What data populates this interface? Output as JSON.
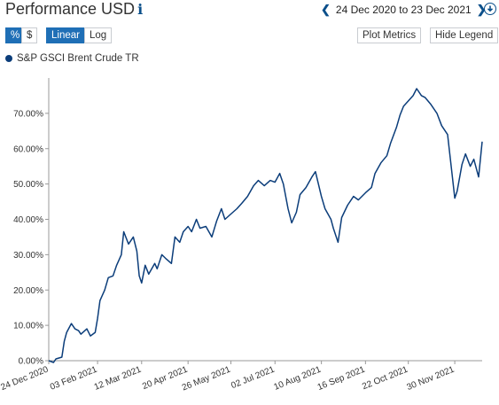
{
  "header": {
    "title": "Performance USD",
    "info_icon": "i",
    "date_range": "24 Dec 2020 to 23 Dec 2021",
    "prev_icon": "chevron-left-icon",
    "next_icon": "chevron-right-icon",
    "download_icon": "download-icon"
  },
  "toolbar": {
    "percent_label": "%",
    "dollar_label": "$",
    "linear_label": "Linear",
    "log_label": "Log",
    "plot_metrics_label": "Plot Metrics",
    "hide_legend_label": "Hide Legend"
  },
  "legend": {
    "series_name": "S&P GSCI Brent Crude TR"
  },
  "colors": {
    "line": "#0b3d7a",
    "accent": "#1f6fb6",
    "axis": "#999999"
  },
  "chart_data": {
    "type": "line",
    "title": "",
    "xlabel": "",
    "ylabel": "",
    "y_unit": "%",
    "ylim": [
      0,
      80
    ],
    "yticks": [
      0,
      10,
      20,
      30,
      40,
      50,
      60,
      70
    ],
    "ytick_labels": [
      "0.00%",
      "10.00%",
      "20.00%",
      "30.00%",
      "40.00%",
      "50.00%",
      "60.00%",
      "70.00%"
    ],
    "xlim": [
      "2020-12-24",
      "2021-12-23"
    ],
    "xticks": [
      "2020-12-24",
      "2021-02-03",
      "2021-03-12",
      "2021-04-20",
      "2021-05-26",
      "2021-07-02",
      "2021-08-10",
      "2021-09-16",
      "2021-10-22",
      "2021-11-30"
    ],
    "xtick_labels": [
      "24 Dec 2020",
      "03 Feb 2021",
      "12 Mar 2021",
      "20 Apr 2021",
      "26 May 2021",
      "02 Jul 2021",
      "10 Aug 2021",
      "16 Sep 2021",
      "22 Oct 2021",
      "30 Nov 2021"
    ],
    "grid": false,
    "legend_position": "top-left",
    "series": [
      {
        "name": "S&P GSCI Brent Crude TR",
        "x": [
          "2020-12-24",
          "2020-12-28",
          "2020-12-30",
          "2021-01-04",
          "2021-01-06",
          "2021-01-08",
          "2021-01-12",
          "2021-01-15",
          "2021-01-18",
          "2021-01-20",
          "2021-01-25",
          "2021-01-28",
          "2021-02-01",
          "2021-02-03",
          "2021-02-05",
          "2021-02-09",
          "2021-02-12",
          "2021-02-16",
          "2021-02-19",
          "2021-02-23",
          "2021-02-25",
          "2021-03-01",
          "2021-03-05",
          "2021-03-08",
          "2021-03-10",
          "2021-03-12",
          "2021-03-15",
          "2021-03-18",
          "2021-03-23",
          "2021-03-25",
          "2021-03-29",
          "2021-04-01",
          "2021-04-06",
          "2021-04-09",
          "2021-04-13",
          "2021-04-16",
          "2021-04-20",
          "2021-04-23",
          "2021-04-27",
          "2021-04-30",
          "2021-05-05",
          "2021-05-10",
          "2021-05-14",
          "2021-05-18",
          "2021-05-21",
          "2021-05-26",
          "2021-05-31",
          "2021-06-04",
          "2021-06-09",
          "2021-06-14",
          "2021-06-18",
          "2021-06-23",
          "2021-06-28",
          "2021-07-02",
          "2021-07-06",
          "2021-07-09",
          "2021-07-13",
          "2021-07-16",
          "2021-07-20",
          "2021-07-23",
          "2021-07-28",
          "2021-08-02",
          "2021-08-05",
          "2021-08-10",
          "2021-08-13",
          "2021-08-18",
          "2021-08-20",
          "2021-08-24",
          "2021-08-27",
          "2021-09-01",
          "2021-09-06",
          "2021-09-10",
          "2021-09-16",
          "2021-09-21",
          "2021-09-24",
          "2021-09-29",
          "2021-10-04",
          "2021-10-07",
          "2021-10-12",
          "2021-10-15",
          "2021-10-18",
          "2021-10-22",
          "2021-10-26",
          "2021-10-29",
          "2021-11-02",
          "2021-11-05",
          "2021-11-10",
          "2021-11-15",
          "2021-11-19",
          "2021-11-24",
          "2021-11-26",
          "2021-11-30",
          "2021-12-02",
          "2021-12-06",
          "2021-12-09",
          "2021-12-13",
          "2021-12-16",
          "2021-12-20",
          "2021-12-23"
        ],
        "y": [
          0.0,
          -0.5,
          0.5,
          1.0,
          5.5,
          8.0,
          10.5,
          9.0,
          8.5,
          7.5,
          9.0,
          7.0,
          8.0,
          12.0,
          17.0,
          20.0,
          23.5,
          24.0,
          27.0,
          30.0,
          36.5,
          33.0,
          35.0,
          31.0,
          24.0,
          22.0,
          27.0,
          24.5,
          27.5,
          26.0,
          30.0,
          29.0,
          27.5,
          35.0,
          33.5,
          36.5,
          38.0,
          36.5,
          40.0,
          37.5,
          38.0,
          35.0,
          39.5,
          43.0,
          40.0,
          41.5,
          43.0,
          44.5,
          46.5,
          49.5,
          51.0,
          49.5,
          51.0,
          50.5,
          53.0,
          50.0,
          43.0,
          39.0,
          42.0,
          47.0,
          49.0,
          52.0,
          53.5,
          46.5,
          43.0,
          40.0,
          37.5,
          33.5,
          40.5,
          44.0,
          46.5,
          45.5,
          47.5,
          49.0,
          53.0,
          56.0,
          58.0,
          61.5,
          66.0,
          69.5,
          72.0,
          73.5,
          75.0,
          77.0,
          75.0,
          74.5,
          72.5,
          70.0,
          66.5,
          64.0,
          58.0,
          46.0,
          48.0,
          55.5,
          58.5,
          55.0,
          57.0,
          52.0,
          62.0
        ]
      }
    ]
  }
}
